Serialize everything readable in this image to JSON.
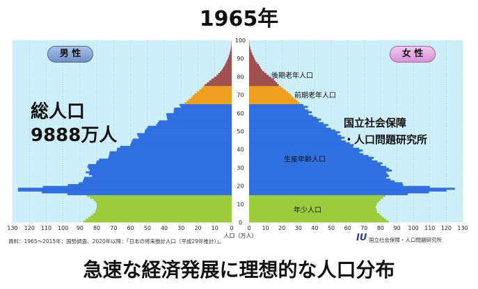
{
  "title": "1965年",
  "male_label": "男 性",
  "female_label": "女 性",
  "total_line1": "総人口",
  "total_line2": "9888万人",
  "institute_line1": "国立社会保障",
  "institute_line2": "・人口問題研究所",
  "caption": "急速な経済発展に理想的な人口分布",
  "source": "資料：1965〜2015年：国勢調査、2020年以降：「日本の将来推計人口（平成29年推計）」。",
  "credit": "国立社会保障・人口問題研究所",
  "colors": {
    "young": "#9ccc3c",
    "working": "#2f6fe0",
    "early_old": "#f0a020",
    "late_old": "#a05050",
    "background": "#cdeffa"
  },
  "chart_data": {
    "type": "bar",
    "orientation": "horizontal-pyramid",
    "x_axis_label": "人口（万人）",
    "x_ticks": [
      130,
      120,
      110,
      100,
      90,
      80,
      70,
      60,
      50,
      40,
      30,
      20,
      10,
      0
    ],
    "y_ticks": [
      0,
      10,
      20,
      30,
      40,
      50,
      60,
      70,
      80,
      90,
      100
    ],
    "xlim": [
      0,
      130
    ],
    "ylim": [
      0,
      100
    ],
    "age_groups": [
      {
        "label": "年少人口",
        "range": [
          0,
          14
        ]
      },
      {
        "label": "生産年齢人口",
        "range": [
          15,
          64
        ]
      },
      {
        "label": "前期老年人口",
        "range": [
          65,
          74
        ]
      },
      {
        "label": "後期老年人口",
        "range": [
          75,
          100
        ]
      }
    ],
    "series": [
      {
        "name": "男 性",
        "side": "left"
      },
      {
        "name": "女 性",
        "side": "right"
      }
    ],
    "anchors_male": [
      [
        0,
        88
      ],
      [
        2,
        85
      ],
      [
        5,
        81
      ],
      [
        8,
        80
      ],
      [
        10,
        80
      ],
      [
        12,
        82
      ],
      [
        14,
        86
      ],
      [
        15,
        98
      ],
      [
        16,
        112
      ],
      [
        17,
        125
      ],
      [
        18,
        128
      ],
      [
        19,
        112
      ],
      [
        20,
        96
      ],
      [
        22,
        89
      ],
      [
        25,
        84
      ],
      [
        28,
        86
      ],
      [
        30,
        85
      ],
      [
        33,
        80
      ],
      [
        35,
        75
      ],
      [
        37,
        72
      ],
      [
        40,
        68
      ],
      [
        42,
        62
      ],
      [
        45,
        57
      ],
      [
        48,
        55
      ],
      [
        50,
        52
      ],
      [
        53,
        46
      ],
      [
        56,
        40
      ],
      [
        59,
        37
      ],
      [
        62,
        33
      ],
      [
        64,
        31
      ],
      [
        65,
        28
      ],
      [
        68,
        24
      ],
      [
        70,
        22
      ],
      [
        73,
        18
      ],
      [
        75,
        16
      ],
      [
        78,
        12
      ],
      [
        80,
        9
      ],
      [
        83,
        6
      ],
      [
        86,
        4
      ],
      [
        88,
        3
      ],
      [
        90,
        2
      ],
      [
        93,
        1
      ],
      [
        95,
        0.5
      ],
      [
        97,
        0.2
      ],
      [
        100,
        0
      ]
    ],
    "anchors_female": [
      [
        0,
        85
      ],
      [
        2,
        82
      ],
      [
        5,
        78
      ],
      [
        8,
        77
      ],
      [
        10,
        78
      ],
      [
        12,
        80
      ],
      [
        14,
        83
      ],
      [
        15,
        96
      ],
      [
        16,
        110
      ],
      [
        17,
        122
      ],
      [
        18,
        124
      ],
      [
        19,
        110
      ],
      [
        20,
        95
      ],
      [
        22,
        88
      ],
      [
        25,
        84
      ],
      [
        28,
        85
      ],
      [
        30,
        84
      ],
      [
        33,
        78
      ],
      [
        35,
        74
      ],
      [
        37,
        70
      ],
      [
        40,
        67
      ],
      [
        42,
        62
      ],
      [
        45,
        58
      ],
      [
        48,
        55
      ],
      [
        50,
        52
      ],
      [
        53,
        47
      ],
      [
        56,
        42
      ],
      [
        59,
        38
      ],
      [
        62,
        35
      ],
      [
        64,
        33
      ],
      [
        65,
        31
      ],
      [
        68,
        27
      ],
      [
        70,
        25
      ],
      [
        73,
        21
      ],
      [
        75,
        18
      ],
      [
        78,
        15
      ],
      [
        80,
        12
      ],
      [
        83,
        8
      ],
      [
        86,
        6
      ],
      [
        88,
        4
      ],
      [
        90,
        3
      ],
      [
        93,
        1.5
      ],
      [
        95,
        0.8
      ],
      [
        97,
        0.3
      ],
      [
        100,
        0
      ]
    ]
  }
}
